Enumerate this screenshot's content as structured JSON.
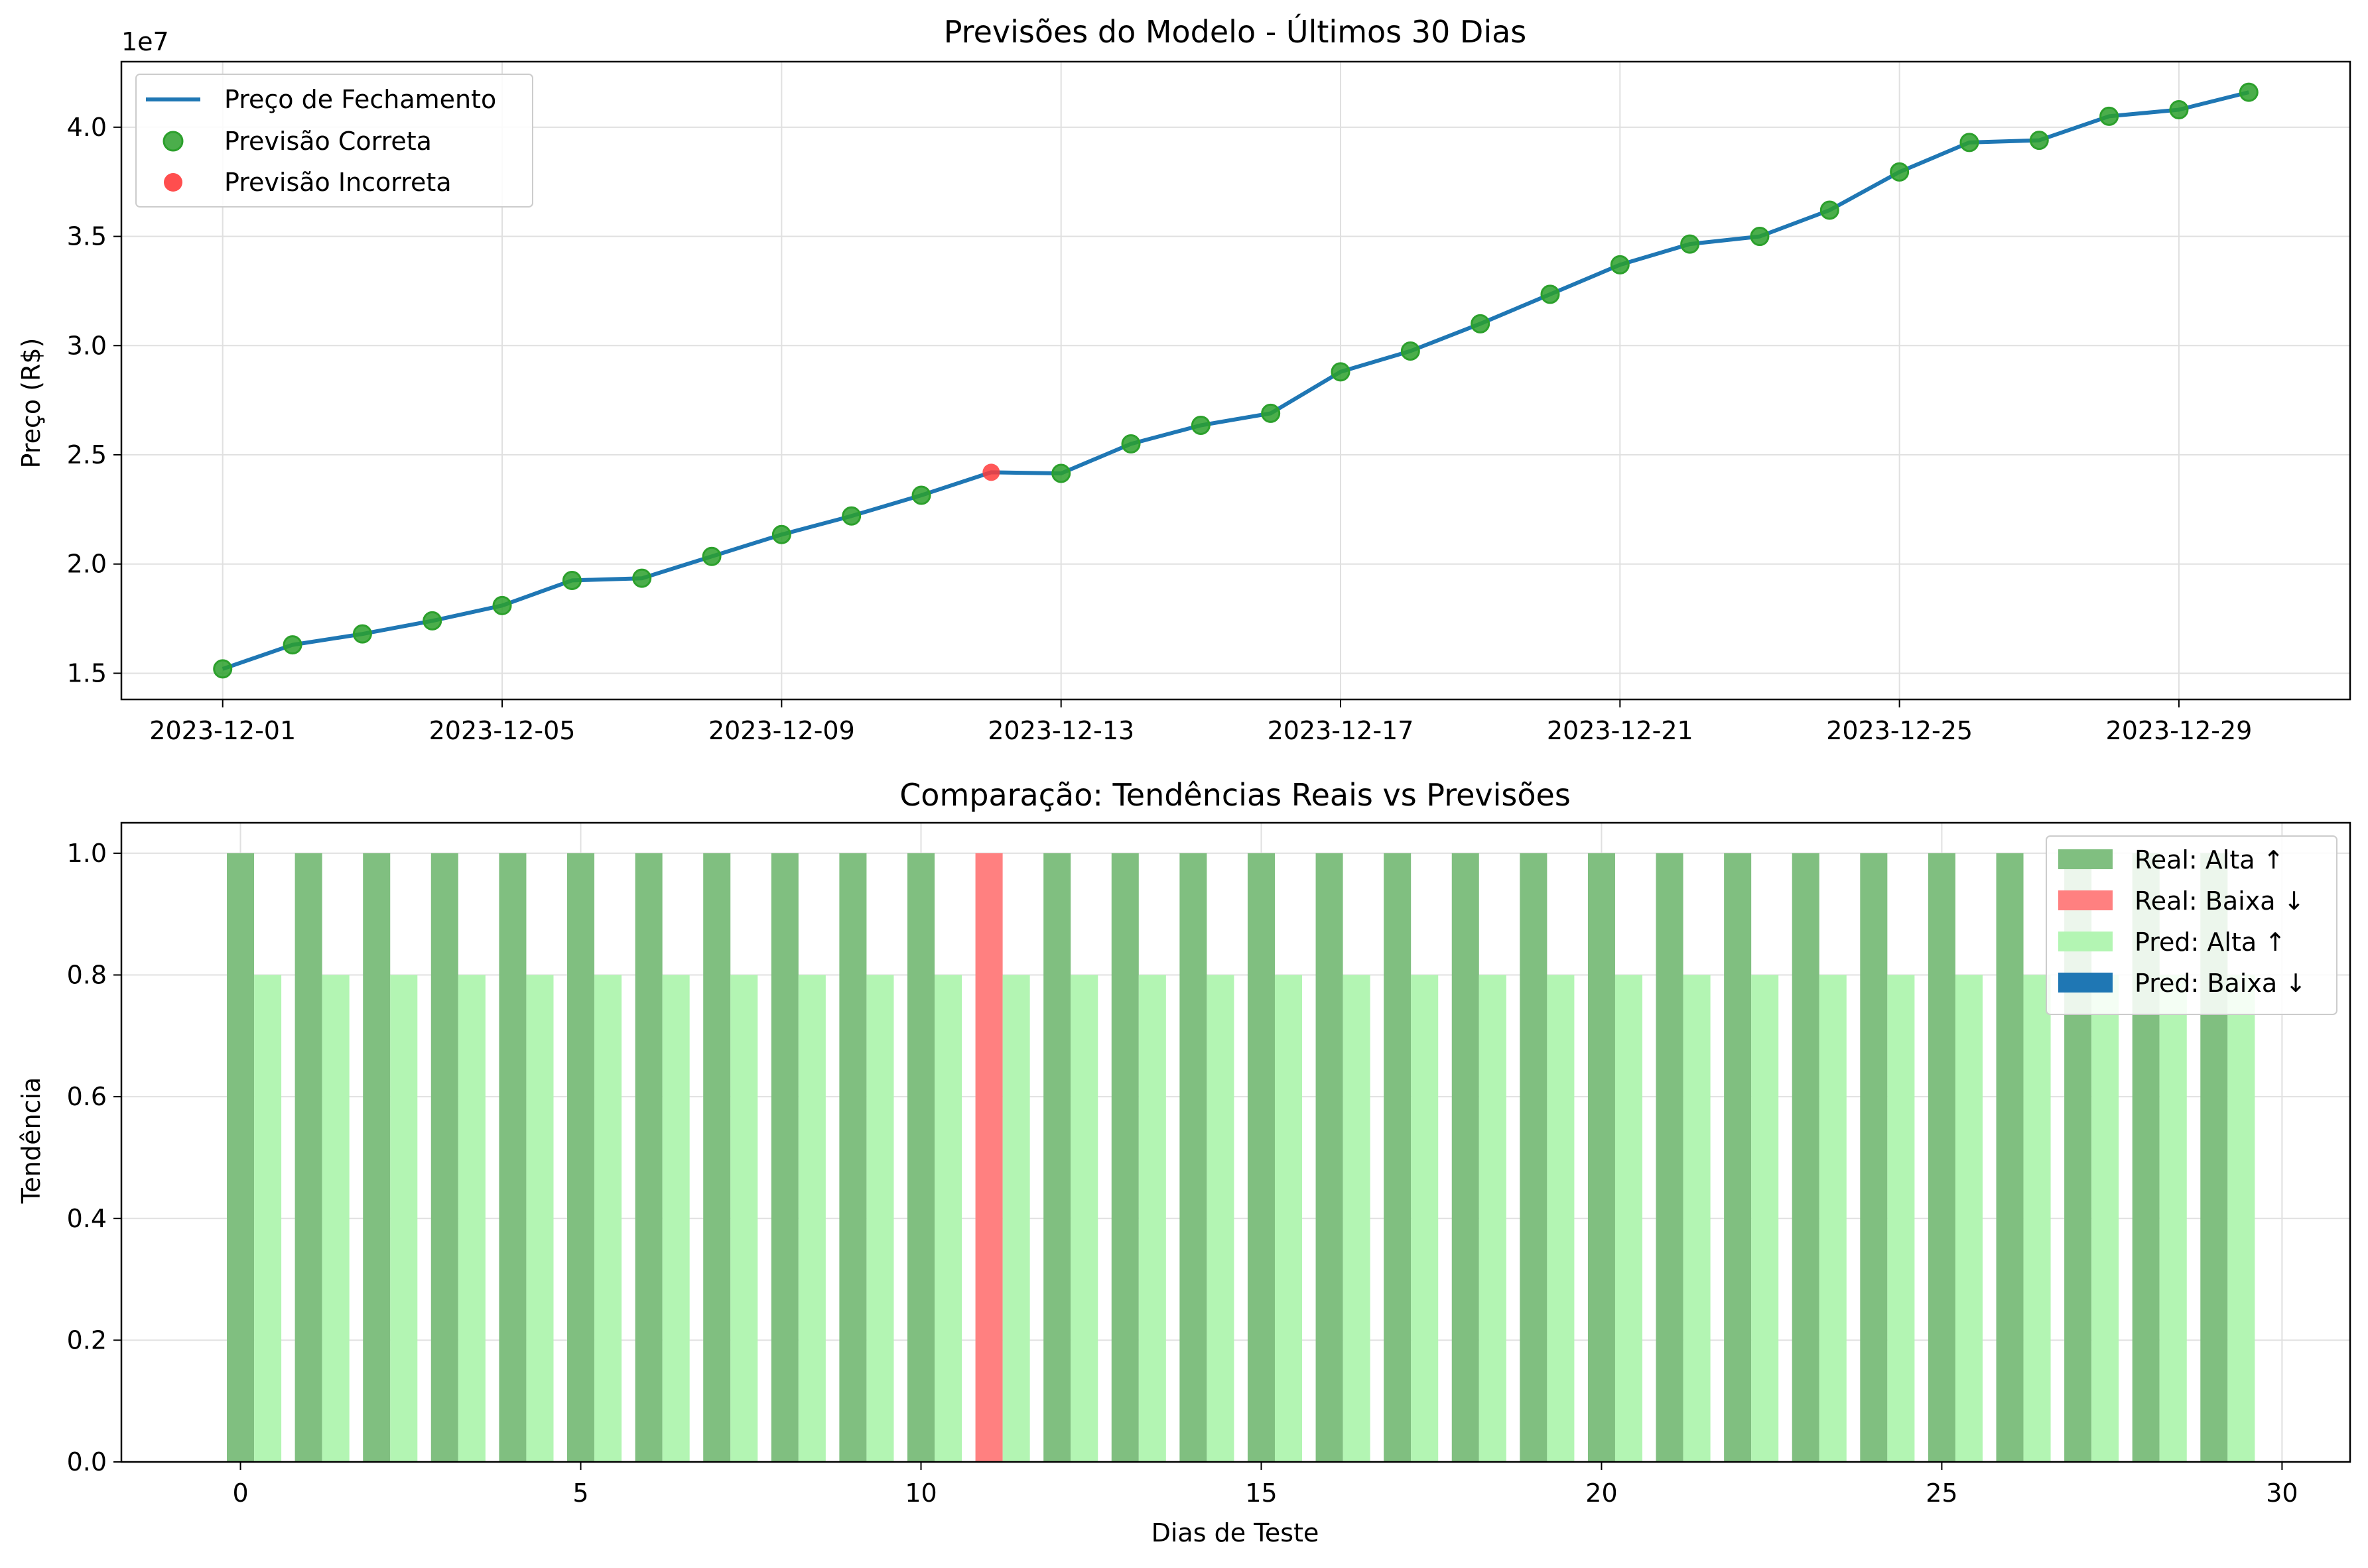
{
  "colors": {
    "line": "#1f77b4",
    "correct": "#2ca02c",
    "incorrect": "#ff3b3b",
    "real_up": "#80bf80",
    "real_down": "#ff8080",
    "pred_up": "#b3f5b3",
    "pred_down": "#1f77b4",
    "grid": "#e0e0e0"
  },
  "chart_data": [
    {
      "type": "line",
      "title": "Previsões do Modelo - Últimos 30 Dias",
      "xlabel": "",
      "ylabel": "Preço (R$)",
      "y_offset_label": "1e7",
      "x": [
        "2023-12-01",
        "2023-12-02",
        "2023-12-03",
        "2023-12-04",
        "2023-12-05",
        "2023-12-06",
        "2023-12-07",
        "2023-12-08",
        "2023-12-09",
        "2023-12-10",
        "2023-12-11",
        "2023-12-12",
        "2023-12-13",
        "2023-12-14",
        "2023-12-15",
        "2023-12-16",
        "2023-12-17",
        "2023-12-18",
        "2023-12-19",
        "2023-12-20",
        "2023-12-21",
        "2023-12-22",
        "2023-12-23",
        "2023-12-24",
        "2023-12-25",
        "2023-12-26",
        "2023-12-27",
        "2023-12-28",
        "2023-12-29",
        "2023-12-30"
      ],
      "x_ticks": [
        "2023-12-01",
        "2023-12-05",
        "2023-12-09",
        "2023-12-13",
        "2023-12-17",
        "2023-12-21",
        "2023-12-25",
        "2023-12-29"
      ],
      "y_ticks": [
        "1.5",
        "2.0",
        "2.5",
        "3.0",
        "3.5",
        "4.0"
      ],
      "ylim": [
        1.38,
        4.3
      ],
      "grid": true,
      "legend_position": "upper-left",
      "series": [
        {
          "name": "Preço de Fechamento",
          "values": [
            1.52,
            1.63,
            1.68,
            1.74,
            1.81,
            1.925,
            1.935,
            2.035,
            2.135,
            2.22,
            2.315,
            2.42,
            2.415,
            2.55,
            2.635,
            2.69,
            2.88,
            2.975,
            3.1,
            3.235,
            3.37,
            3.465,
            3.5,
            3.62,
            3.795,
            3.93,
            3.94,
            4.05,
            4.08,
            4.16
          ]
        },
        {
          "name": "Previsão Correta",
          "marker": "circle"
        },
        {
          "name": "Previsão Incorreta",
          "marker": "circle"
        }
      ],
      "prediction_correct": [
        true,
        true,
        true,
        true,
        true,
        true,
        true,
        true,
        true,
        true,
        true,
        false,
        true,
        true,
        true,
        true,
        true,
        true,
        true,
        true,
        true,
        true,
        true,
        true,
        true,
        true,
        true,
        true,
        true,
        true
      ]
    },
    {
      "type": "bar",
      "title": "Comparação: Tendências Reais vs Previsões",
      "xlabel": "Dias de Teste",
      "ylabel": "Tendência",
      "x": [
        0,
        1,
        2,
        3,
        4,
        5,
        6,
        7,
        8,
        9,
        10,
        11,
        12,
        13,
        14,
        15,
        16,
        17,
        18,
        19,
        20,
        21,
        22,
        23,
        24,
        25,
        26,
        27,
        28,
        29
      ],
      "x_ticks": [
        "0",
        "5",
        "10",
        "15",
        "20",
        "25",
        "30"
      ],
      "y_ticks": [
        "0.0",
        "0.2",
        "0.4",
        "0.6",
        "0.8",
        "1.0"
      ],
      "xlim": [
        -1.75,
        31.0
      ],
      "ylim": [
        0,
        1.05
      ],
      "grid": true,
      "legend_position": "upper-right",
      "series": [
        {
          "name": "Real: Alta ↑",
          "values": [
            1,
            1,
            1,
            1,
            1,
            1,
            1,
            1,
            1,
            1,
            1,
            0,
            1,
            1,
            1,
            1,
            1,
            1,
            1,
            1,
            1,
            1,
            1,
            1,
            1,
            1,
            1,
            1,
            1,
            1
          ]
        },
        {
          "name": "Real: Baixa ↓",
          "values": [
            0,
            0,
            0,
            0,
            0,
            0,
            0,
            0,
            0,
            0,
            0,
            1,
            0,
            0,
            0,
            0,
            0,
            0,
            0,
            0,
            0,
            0,
            0,
            0,
            0,
            0,
            0,
            0,
            0,
            0
          ]
        },
        {
          "name": "Pred: Alta ↑",
          "values": [
            0.8,
            0.8,
            0.8,
            0.8,
            0.8,
            0.8,
            0.8,
            0.8,
            0.8,
            0.8,
            0.8,
            0.8,
            0.8,
            0.8,
            0.8,
            0.8,
            0.8,
            0.8,
            0.8,
            0.8,
            0.8,
            0.8,
            0.8,
            0.8,
            0.8,
            0.8,
            0.8,
            0.8,
            0.8,
            0.8
          ]
        },
        {
          "name": "Pred: Baixa ↓",
          "values": [
            0,
            0,
            0,
            0,
            0,
            0,
            0,
            0,
            0,
            0,
            0,
            0,
            0,
            0,
            0,
            0,
            0,
            0,
            0,
            0,
            0,
            0,
            0,
            0,
            0,
            0,
            0,
            0,
            0,
            0
          ]
        }
      ]
    }
  ]
}
